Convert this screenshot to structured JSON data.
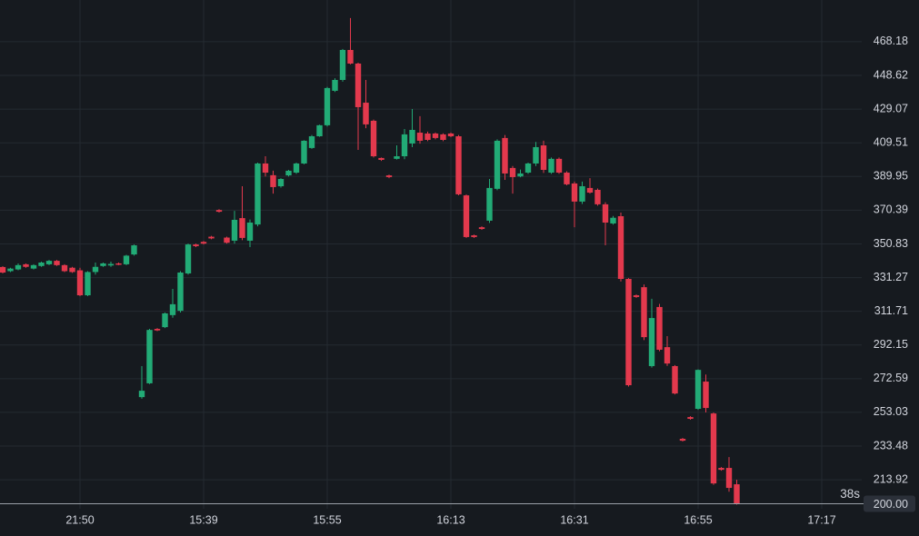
{
  "chart_data": {
    "type": "candlestick",
    "categories": [
      null,
      null,
      null,
      null,
      null,
      null,
      null,
      null,
      null,
      null,
      "21:50",
      null,
      null,
      null,
      null,
      null,
      null,
      null,
      null,
      null,
      null,
      null,
      null,
      null,
      null,
      null,
      "15:39",
      null,
      null,
      null,
      null,
      null,
      null,
      null,
      null,
      null,
      null,
      null,
      null,
      null,
      null,
      null,
      "15:55",
      null,
      null,
      null,
      null,
      null,
      null,
      null,
      null,
      null,
      null,
      null,
      null,
      null,
      null,
      null,
      "16:13",
      null,
      null,
      null,
      null,
      null,
      null,
      null,
      null,
      null,
      null,
      null,
      null,
      null,
      null,
      null,
      "16:31",
      null,
      null,
      null,
      null,
      null,
      null,
      null,
      null,
      null,
      null,
      null,
      null,
      null,
      null,
      null,
      "16:55",
      null,
      null,
      null,
      null,
      null,
      null,
      null,
      null,
      null,
      null,
      null,
      null,
      null,
      null,
      null,
      "17:17"
    ],
    "open": [
      337.4,
      335,
      336,
      339,
      336.5,
      338,
      339,
      341,
      338.5,
      337,
      335.5,
      321,
      334.5,
      338,
      338.3,
      339.5,
      339,
      344.7,
      261.9,
      269.9,
      301.5,
      302.5,
      309.5,
      312,
      333.7,
      350.5,
      352,
      355,
      370.5,
      354.5,
      352.7,
      365.8,
      352.7,
      362.1,
      397.5,
      390.7,
      384.3,
      390.6,
      392.2,
      397.5,
      406.5,
      413.3,
      419.7,
      439.7,
      446,
      463.4,
      455.5,
      432.8,
      422.3,
      400.7,
      390.6,
      400.2,
      401.7,
      409.1,
      415.4,
      414.9,
      414.9,
      414.4,
      414.9,
      413.3,
      379,
      355.8,
      360.5,
      364.3,
      382.8,
      412.3,
      394.9,
      390,
      392.2,
      397.5,
      408,
      392.2,
      400.2,
      392.2,
      385.9,
      375.4,
      383.3,
      382.2,
      373.8,
      362.7,
      366.9,
      330.5,
      321,
      325.7,
      279.9,
      314.2,
      290.9,
      279.9,
      237.7,
      250.3,
      255.1,
      270.9,
      252.4,
      220.8,
      220.8,
      211.3,
      null,
      null,
      null,
      null,
      null,
      null,
      null,
      null,
      null,
      null,
      null
    ],
    "high": [
      337.9,
      337,
      339.5,
      339.5,
      339,
      340.5,
      341.5,
      341.5,
      339,
      337.5,
      337,
      335,
      340,
      340,
      340.5,
      340,
      344.5,
      350.5,
      279.9,
      301.5,
      302,
      311,
      324.7,
      335,
      351,
      351,
      352.5,
      355.5,
      371,
      355,
      370,
      384.3,
      365,
      398,
      401.7,
      393.3,
      389,
      393.8,
      398,
      411,
      414,
      420,
      442,
      447,
      464,
      481.9,
      456,
      446,
      423,
      401,
      391,
      408,
      417.5,
      429.1,
      425,
      416,
      415.5,
      415,
      415.5,
      414,
      379.5,
      356.2,
      361,
      388.5,
      411.5,
      414,
      396,
      394,
      398,
      410,
      410.7,
      401,
      401,
      393,
      387,
      387,
      389,
      383,
      375,
      367,
      369,
      331,
      321.5,
      327.3,
      319,
      316,
      297.3,
      280.5,
      238.2,
      250.8,
      278,
      275,
      253,
      221.3,
      227.1,
      213.9,
      null,
      null,
      null,
      null,
      null,
      null,
      null,
      null,
      null,
      null,
      null
    ],
    "low": [
      333.7,
      334.5,
      335.5,
      337,
      336,
      337.5,
      338.5,
      338,
      334.5,
      334,
      320.5,
      320.5,
      333,
      337.5,
      337.5,
      338.5,
      338.5,
      344,
      261,
      269.5,
      300.2,
      302,
      308,
      311,
      333,
      349,
      350.5,
      353.5,
      369,
      351,
      351,
      353,
      349,
      361,
      390,
      380,
      383.5,
      390,
      391.5,
      397,
      406,
      413,
      419,
      439,
      445,
      455,
      405.4,
      418,
      401,
      399,
      389,
      399.8,
      400,
      407,
      409,
      410.5,
      411.5,
      410.5,
      412.8,
      379,
      354.3,
      354.3,
      359,
      363,
      382,
      388,
      380,
      389.5,
      391.5,
      396,
      392,
      391.5,
      391.5,
      384.8,
      360.5,
      374,
      380,
      373,
      350,
      362,
      329,
      268,
      319.5,
      295,
      279,
      288.5,
      280,
      263.5,
      236.1,
      248.8,
      254.5,
      253,
      211,
      219.2,
      207,
      199.5,
      null,
      null,
      null,
      null,
      null,
      null,
      null,
      null,
      null,
      null,
      null
    ],
    "close": [
      334.2,
      336.5,
      338.5,
      337.5,
      338.5,
      340,
      341,
      338.5,
      335,
      334.5,
      321,
      334.5,
      337.5,
      339.5,
      339.2,
      339,
      344,
      350,
      265.6,
      300.9,
      300.6,
      310.5,
      315.8,
      334.2,
      350.5,
      349.5,
      351,
      354,
      369.5,
      351.5,
      364.8,
      354.3,
      363.2,
      397.5,
      392.2,
      383.8,
      388.5,
      393.3,
      397.5,
      410.7,
      413.3,
      419.7,
      441.3,
      446,
      463.4,
      455.5,
      430.2,
      420.2,
      401.7,
      399.6,
      389.6,
      401.7,
      414.4,
      417,
      410.7,
      411.2,
      412.3,
      411.2,
      413.3,
      379.6,
      354.8,
      354.8,
      359.5,
      383.3,
      410.7,
      391.7,
      389.6,
      391.7,
      397.5,
      407,
      393.8,
      400.2,
      392.2,
      385.4,
      375.4,
      384.3,
      380.6,
      373.8,
      363.2,
      366,
      330.5,
      268.8,
      320,
      296.7,
      307.8,
      289.4,
      281.4,
      264,
      236.6,
      249.3,
      277.7,
      255.6,
      211.8,
      219.7,
      209.2,
      200,
      null,
      null,
      null,
      null,
      null,
      null,
      null,
      null,
      null,
      null,
      null
    ],
    "up_color": "#22ab76",
    "down_color": "#e3394d",
    "ylim": [
      197.1,
      492.4
    ],
    "yticks": [
      468.18,
      448.62,
      429.07,
      409.51,
      389.95,
      370.39,
      350.83,
      331.27,
      311.71,
      292.15,
      272.59,
      253.03,
      233.48,
      213.92
    ],
    "grid": true,
    "current_price": {
      "value": 200,
      "label": "200.00"
    },
    "countdown": "38s"
  }
}
